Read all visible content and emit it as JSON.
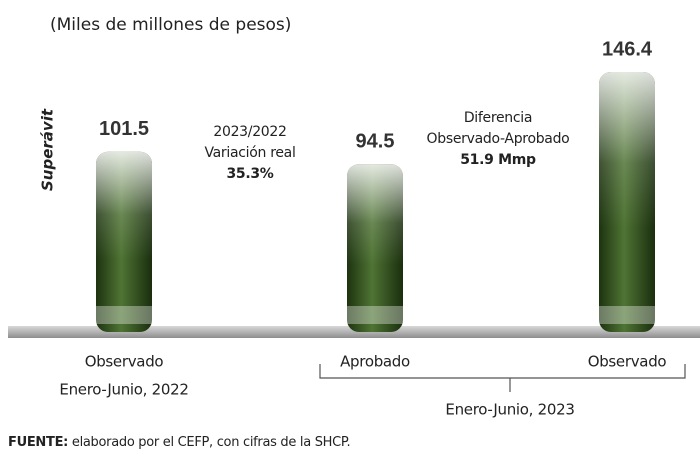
{
  "chart_data": {
    "type": "bar",
    "subtitle": "(Miles de millones de pesos)",
    "ylabel": "Superávit",
    "categories": [
      "Observado",
      "Aprobado",
      "Observado"
    ],
    "values": [
      101.5,
      94.5,
      146.4
    ],
    "groups": [
      "Enero-Junio, 2022",
      "Enero-Junio, 2023"
    ],
    "annotations": [
      {
        "lines": [
          "2023/2022",
          "Variación real",
          "35.3%"
        ]
      },
      {
        "lines": [
          "Diferencia",
          "Observado-Aprobado",
          "51.9 Mmp"
        ]
      }
    ],
    "source": {
      "label": "FUENTE:",
      "text": " elaborado por el CEFP, con cifras de la SHCP."
    }
  }
}
